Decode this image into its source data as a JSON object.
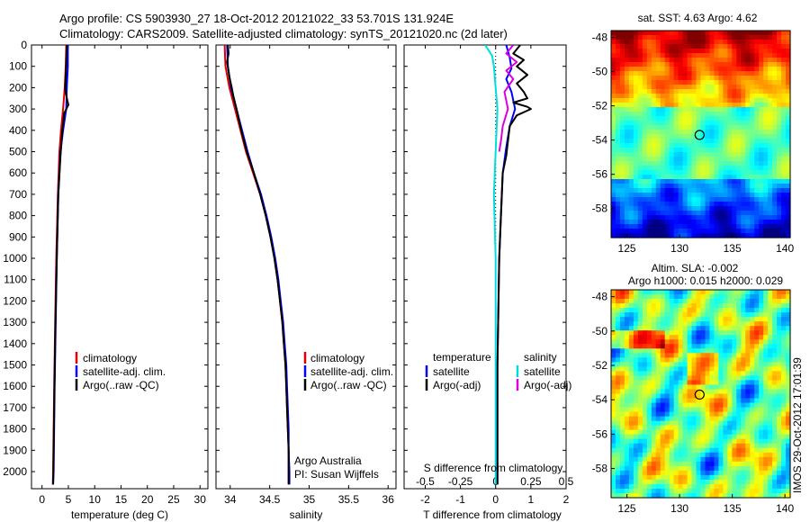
{
  "header": {
    "line1": "Argo profile: CS 5903930_27 18-Oct-2012 20121022_33 53.701S 131.924E",
    "line2": "Climatology: CARS2009. Satellite-adjusted climatology: synTS_20121020.nc (2d later)"
  },
  "colors": {
    "clim": "#dd0000",
    "sat": "#0000ff",
    "argo": "#000000",
    "sat_s": "#00dddd",
    "argo_s": "#dd00dd"
  },
  "chart_data": [
    {
      "type": "line",
      "id": "temperature",
      "xlabel": "temperature (deg C)",
      "xlim": [
        -2,
        31.5
      ],
      "xticks": [
        "0",
        "5",
        "10",
        "15",
        "20",
        "25",
        "30"
      ],
      "xtick_values": [
        0,
        5,
        10,
        15,
        20,
        25,
        30
      ],
      "ylim": [
        0,
        2080
      ],
      "yticks": [
        "0",
        "100",
        "200",
        "300",
        "400",
        "500",
        "600",
        "700",
        "800",
        "900",
        "1000",
        "1100",
        "1200",
        "1300",
        "1400",
        "1500",
        "1600",
        "1700",
        "1800",
        "1900",
        "2000"
      ],
      "ytick_values": [
        0,
        100,
        200,
        300,
        400,
        500,
        600,
        700,
        800,
        900,
        1000,
        1100,
        1200,
        1300,
        1400,
        1500,
        1600,
        1700,
        1800,
        1900,
        2000
      ],
      "legend": [
        "climatology",
        "satellite-adj. clim.",
        "Argo(..raw -QC)"
      ],
      "series": [
        {
          "name": "climatology",
          "color_key": "clim",
          "points": [
            [
              4.6,
              0
            ],
            [
              4.5,
              100
            ],
            [
              4.3,
              200
            ],
            [
              4.0,
              300
            ],
            [
              3.6,
              400
            ],
            [
              3.3,
              500
            ],
            [
              3.0,
              700
            ],
            [
              2.7,
              1000
            ],
            [
              2.5,
              1300
            ],
            [
              2.3,
              1600
            ],
            [
              2.1,
              2000
            ],
            [
              2.05,
              2060
            ]
          ]
        },
        {
          "name": "satellite-adj. clim.",
          "color_key": "sat",
          "points": [
            [
              4.9,
              0
            ],
            [
              4.9,
              100
            ],
            [
              4.7,
              200
            ],
            [
              4.6,
              300
            ],
            [
              4.0,
              400
            ],
            [
              3.5,
              500
            ],
            [
              3.1,
              700
            ],
            [
              2.8,
              1000
            ],
            [
              2.6,
              1300
            ],
            [
              2.4,
              1600
            ],
            [
              2.2,
              2000
            ],
            [
              2.1,
              2060
            ]
          ]
        },
        {
          "name": "Argo(..raw -QC)",
          "color_key": "argo",
          "points": [
            [
              4.7,
              0
            ],
            [
              4.6,
              80
            ],
            [
              4.5,
              150
            ],
            [
              4.4,
              210
            ],
            [
              4.8,
              260
            ],
            [
              5.0,
              280
            ],
            [
              4.2,
              320
            ],
            [
              3.8,
              420
            ],
            [
              3.5,
              520
            ],
            [
              3.1,
              700
            ],
            [
              2.8,
              1000
            ],
            [
              2.55,
              1300
            ],
            [
              2.35,
              1600
            ],
            [
              2.15,
              2000
            ],
            [
              2.1,
              2060
            ]
          ]
        }
      ]
    },
    {
      "type": "line",
      "id": "salinity",
      "xlabel": "salinity",
      "xlim": [
        33.82,
        36.1
      ],
      "xticks": [
        "34",
        "34.5",
        "35",
        "35.5",
        "36"
      ],
      "xtick_values": [
        34,
        34.5,
        35,
        35.5,
        36
      ],
      "ylim": [
        0,
        2080
      ],
      "legend": [
        "climatology",
        "satellite-adj. clim.",
        "Argo(..raw -QC)"
      ],
      "annotations": [
        "Argo Australia",
        "PI: Susan Wijffels"
      ],
      "series": [
        {
          "name": "climatology",
          "color_key": "clim",
          "points": [
            [
              33.93,
              0
            ],
            [
              33.94,
              100
            ],
            [
              33.99,
              200
            ],
            [
              34.06,
              300
            ],
            [
              34.13,
              400
            ],
            [
              34.2,
              500
            ],
            [
              34.29,
              600
            ],
            [
              34.38,
              700
            ],
            [
              34.45,
              800
            ],
            [
              34.51,
              900
            ],
            [
              34.56,
              1000
            ],
            [
              34.6,
              1100
            ],
            [
              34.63,
              1200
            ],
            [
              34.66,
              1300
            ],
            [
              34.68,
              1400
            ],
            [
              34.7,
              1500
            ],
            [
              34.71,
              1600
            ],
            [
              34.72,
              1700
            ],
            [
              34.73,
              1800
            ],
            [
              34.74,
              1900
            ],
            [
              34.74,
              2000
            ],
            [
              34.74,
              2060
            ]
          ]
        },
        {
          "name": "satellite-adj. clim.",
          "color_key": "sat",
          "points": [
            [
              33.96,
              0
            ],
            [
              33.97,
              100
            ],
            [
              34.01,
              200
            ],
            [
              34.08,
              300
            ],
            [
              34.15,
              400
            ],
            [
              34.22,
              500
            ],
            [
              34.3,
              600
            ],
            [
              34.39,
              700
            ],
            [
              34.46,
              800
            ],
            [
              34.52,
              900
            ],
            [
              34.57,
              1000
            ],
            [
              34.61,
              1100
            ],
            [
              34.64,
              1200
            ],
            [
              34.67,
              1300
            ],
            [
              34.69,
              1400
            ],
            [
              34.71,
              1500
            ],
            [
              34.72,
              1600
            ],
            [
              34.73,
              1700
            ],
            [
              34.74,
              1800
            ],
            [
              34.74,
              1900
            ],
            [
              34.75,
              2000
            ],
            [
              34.75,
              2060
            ]
          ]
        },
        {
          "name": "Argo(..raw -QC)",
          "color_key": "argo",
          "points": [
            [
              33.97,
              0
            ],
            [
              33.98,
              40
            ],
            [
              33.96,
              80
            ],
            [
              33.99,
              150
            ],
            [
              34.02,
              200
            ],
            [
              34.04,
              240
            ],
            [
              34.08,
              300
            ],
            [
              34.14,
              400
            ],
            [
              34.21,
              500
            ],
            [
              34.3,
              600
            ],
            [
              34.38,
              700
            ],
            [
              34.45,
              800
            ],
            [
              34.51,
              900
            ],
            [
              34.56,
              1000
            ],
            [
              34.6,
              1100
            ],
            [
              34.63,
              1200
            ],
            [
              34.66,
              1300
            ],
            [
              34.68,
              1400
            ],
            [
              34.7,
              1500
            ],
            [
              34.71,
              1600
            ],
            [
              34.72,
              1700
            ],
            [
              34.73,
              1800
            ],
            [
              34.74,
              1900
            ],
            [
              34.74,
              2000
            ],
            [
              34.74,
              2060
            ]
          ]
        }
      ]
    },
    {
      "type": "line",
      "id": "difference",
      "xlabel": "T difference from climatology",
      "xlabel_top": "S difference from climatology",
      "xlim": [
        -2.6,
        2.0
      ],
      "xticks": [
        "-2",
        "-1",
        "0",
        "1",
        "2"
      ],
      "xtick_values": [
        -2,
        -1,
        0,
        1,
        2
      ],
      "xticks_s": [
        "-0.5",
        "-0.25",
        "0",
        "0.25",
        "0.5"
      ],
      "xticks_s_values": [
        -2,
        -1,
        0,
        1,
        2
      ],
      "ylim": [
        0,
        2080
      ],
      "legend_t_title": "temperature",
      "legend_s_title": "salinity",
      "legend_t": [
        "satellite",
        "Argo(-adj)"
      ],
      "legend_s": [
        "satellite",
        "Argo(-adj)"
      ],
      "series": [
        {
          "name": "T satellite",
          "color_key": "sat",
          "points": [
            [
              0.3,
              0
            ],
            [
              0.4,
              60
            ],
            [
              0.45,
              110
            ],
            [
              0.3,
              160
            ],
            [
              0.45,
              220
            ],
            [
              0.55,
              300
            ],
            [
              0.4,
              380
            ],
            [
              0.3,
              480
            ],
            [
              0.2,
              600
            ],
            [
              0.15,
              800
            ],
            [
              0.1,
              1000
            ],
            [
              0.05,
              1500
            ],
            [
              0.05,
              2060
            ]
          ]
        },
        {
          "name": "T Argo(-adj)",
          "color_key": "argo",
          "points": [
            [
              0.7,
              0
            ],
            [
              0.5,
              40
            ],
            [
              0.8,
              70
            ],
            [
              0.6,
              100
            ],
            [
              0.9,
              140
            ],
            [
              0.6,
              180
            ],
            [
              0.8,
              220
            ],
            [
              0.9,
              250
            ],
            [
              0.5,
              270
            ],
            [
              0.9,
              290
            ],
            [
              1.0,
              300
            ],
            [
              0.6,
              330
            ],
            [
              0.4,
              380
            ],
            [
              0.35,
              450
            ],
            [
              0.3,
              520
            ],
            [
              0.2,
              600
            ],
            [
              0.15,
              800
            ],
            [
              0.1,
              1000
            ],
            [
              0.05,
              1500
            ],
            [
              0.05,
              2060
            ]
          ]
        },
        {
          "name": "S satellite",
          "color_key": "sat_s",
          "points": [
            [
              -0.3,
              0
            ],
            [
              -0.1,
              50
            ],
            [
              -0.05,
              100
            ],
            [
              0.0,
              200
            ],
            [
              0.05,
              300
            ],
            [
              0.0,
              500
            ],
            [
              -0.05,
              700
            ],
            [
              0.0,
              1000
            ],
            [
              0.0,
              1500
            ],
            [
              0.0,
              2060
            ]
          ]
        },
        {
          "name": "S Argo(-adj)",
          "color_key": "argo_s",
          "points": [
            [
              0.5,
              0
            ],
            [
              0.3,
              40
            ],
            [
              0.6,
              80
            ],
            [
              0.3,
              120
            ],
            [
              0.5,
              160
            ],
            [
              0.25,
              220
            ],
            [
              0.35,
              300
            ],
            [
              0.2,
              380
            ],
            [
              0.15,
              450
            ],
            [
              0.1,
              500
            ]
          ]
        }
      ]
    }
  ],
  "maps": [
    {
      "title": "sat. SST: 4.63 Argo: 4.62",
      "title2": "",
      "xticks": [
        "125",
        "130",
        "135",
        "140"
      ],
      "xtick_values": [
        125,
        130,
        135,
        140
      ],
      "yticks": [
        "-48",
        "-50",
        "-52",
        "-54",
        "-56",
        "-58"
      ],
      "ytick_values": [
        -48,
        -50,
        -52,
        -54,
        -56,
        -58
      ],
      "xlim": [
        123.5,
        140.5
      ],
      "ylim": [
        -59.7,
        -47.6
      ],
      "marker": [
        131.9,
        -53.7
      ]
    },
    {
      "title": "Altim. SLA: -0.002",
      "title2": "Argo h1000: 0.015 h2000: 0.029",
      "xticks": [
        "125",
        "130",
        "135",
        "140"
      ],
      "xtick_values": [
        125,
        130,
        135,
        140
      ],
      "yticks": [
        "-48",
        "-50",
        "-52",
        "-54",
        "-56",
        "-58"
      ],
      "ytick_values": [
        -48,
        -50,
        -52,
        -54,
        -56,
        -58
      ],
      "xlim": [
        123.5,
        140.5
      ],
      "ylim": [
        -59.7,
        -47.6
      ],
      "marker": [
        131.9,
        -53.7
      ]
    }
  ],
  "footer": {
    "stamp": "IMOS 29-Oct-2012 17:01:39"
  }
}
